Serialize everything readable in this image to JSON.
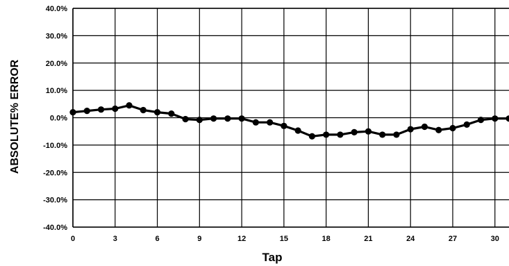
{
  "chart_data": {
    "type": "line",
    "title": "",
    "xlabel": "Tap",
    "ylabel": "ABSOLUTE% ERROR",
    "xlim": [
      0,
      31
    ],
    "ylim": [
      -40,
      40
    ],
    "x_ticks": [
      0,
      3,
      6,
      9,
      12,
      15,
      18,
      21,
      24,
      27,
      30
    ],
    "x_tick_labels": [
      "0",
      "3",
      "6",
      "9",
      "12",
      "15",
      "18",
      "21",
      "24",
      "27",
      "30"
    ],
    "y_ticks": [
      40,
      30,
      20,
      10,
      0,
      -10,
      -20,
      -30,
      -40
    ],
    "y_tick_labels": [
      "40.0%",
      "30.0%",
      "20.0%",
      "10.0%",
      "0.0%",
      "-10.0%",
      "-20.0%",
      "-30.0%",
      "-40.0%"
    ],
    "grid": true,
    "legend": "none",
    "line_color": "#000000",
    "series": [
      {
        "x": [
          0,
          1,
          2,
          3,
          4,
          5,
          6,
          7,
          8,
          9,
          10,
          11,
          12,
          13,
          14,
          15,
          16,
          17,
          18,
          19,
          20,
          21,
          22,
          23,
          24,
          25,
          26,
          27,
          28,
          29,
          30,
          31
        ],
        "values": [
          2.0,
          2.5,
          3.0,
          3.3,
          4.5,
          2.8,
          2.0,
          1.5,
          -0.5,
          -0.8,
          -0.3,
          -0.3,
          -0.3,
          -1.7,
          -1.7,
          -3.0,
          -4.7,
          -6.8,
          -6.2,
          -6.2,
          -5.3,
          -5.0,
          -6.2,
          -6.2,
          -4.2,
          -3.3,
          -4.5,
          -3.8,
          -2.5,
          -0.8,
          -0.3,
          -0.3
        ]
      }
    ]
  }
}
